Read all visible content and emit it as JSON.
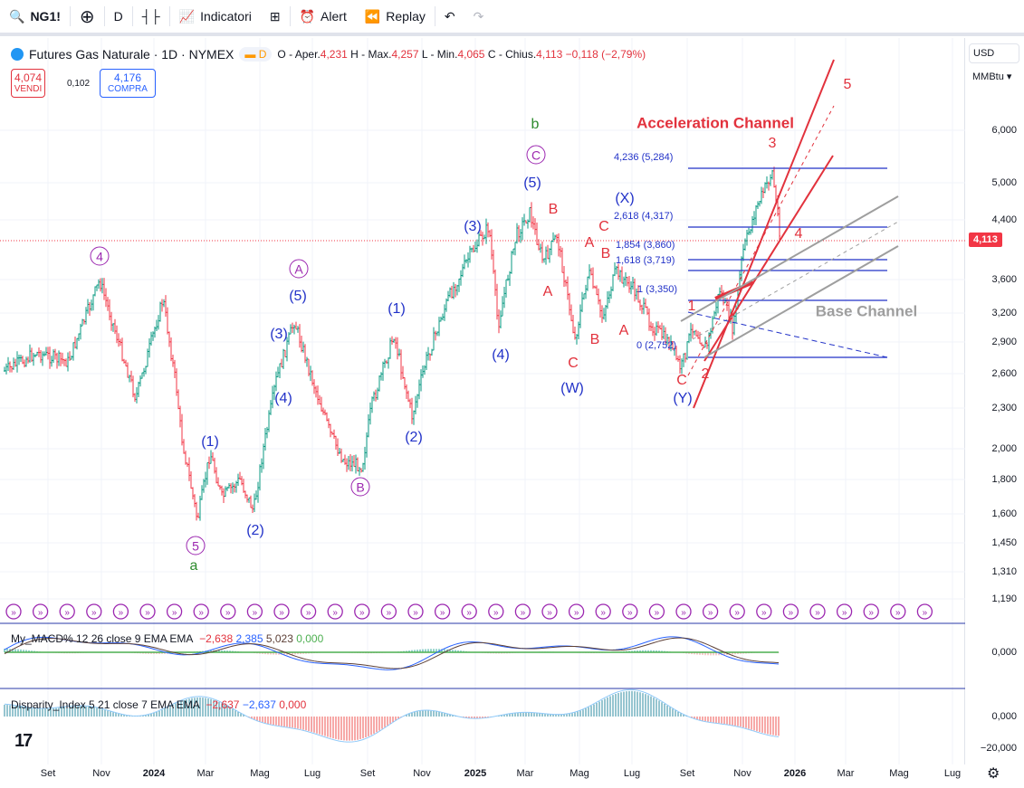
{
  "toolbar": {
    "symbol": "NG1!",
    "interval": "D",
    "indicators": "Indicatori",
    "alert": "Alert",
    "replay": "Replay"
  },
  "legend": {
    "title": "Futures Gas Naturale · 1D · NYMEX",
    "badge": "D",
    "open_label": "O - Aper.",
    "open": "4,231",
    "high_label": "H - Max.",
    "high": "4,257",
    "low_label": "L - Min.",
    "low": "4,065",
    "close_label": "C - Chius.",
    "close": "4,113",
    "change": "−0,118 (−2,79%)"
  },
  "trade": {
    "sell_price": "4,074",
    "sell_label": "VENDI",
    "spread": "0,102",
    "buy_price": "4,176",
    "buy_label": "COMPRA"
  },
  "axis": {
    "currency": "USD",
    "unit": "MMBtu",
    "current_price": "4,113",
    "prices": [
      "6,000",
      "5,000",
      "4,400",
      "3,600",
      "3,200",
      "2,900",
      "2,600",
      "2,300",
      "2,000",
      "1,800",
      "1,600",
      "1,450",
      "1,310",
      "1,190"
    ],
    "macd_zero": "0,000",
    "disp_zero": "0,000",
    "disp_low": "−20,000"
  },
  "time_axis": [
    "Set",
    "Nov",
    "2024",
    "Mar",
    "Mag",
    "Lug",
    "Set",
    "Nov",
    "2025",
    "Mar",
    "Mag",
    "Lug",
    "Set",
    "Nov",
    "2026",
    "Mar",
    "Mag",
    "Lug"
  ],
  "waves": {
    "purple": [
      "4",
      "A",
      "B",
      "C",
      "5"
    ],
    "blue": [
      "(5)",
      "(3)",
      "(4)",
      "(1)",
      "(2)",
      "(1)",
      "(2)",
      "(3)",
      "(4)",
      "(5)",
      "(W)",
      "(X)",
      "(Y)"
    ],
    "red": [
      "B",
      "A",
      "A",
      "B",
      "C",
      "C",
      "B",
      "A",
      "C",
      "1",
      "2",
      "3",
      "4",
      "5"
    ],
    "green": [
      "b",
      "a"
    ]
  },
  "annotations": {
    "acceleration": "Acceleration Channel",
    "base": "Base Channel"
  },
  "fib": [
    "4,236 (5,284)",
    "2,618 (4,317)",
    "1,854 (3,860)",
    "1,618 (3,719)",
    "1 (3,350)",
    "0 (2,752)"
  ],
  "macd": {
    "name": "My_MACD% 12 26 close 9 EMA EMA",
    "v1": "−2,638",
    "v2": "2,385",
    "v3": "5,023",
    "v4": "0,000"
  },
  "disparity": {
    "name": "Disparity_Index 5 21 close 7 EMA EMA",
    "v1": "−2,637",
    "v2": "−2,637",
    "v3": "0,000"
  },
  "colors": {
    "up": "#089981",
    "down": "#f23645",
    "fib": "#2232c8",
    "accel": "#e2323d",
    "base": "#9e9e9e"
  }
}
